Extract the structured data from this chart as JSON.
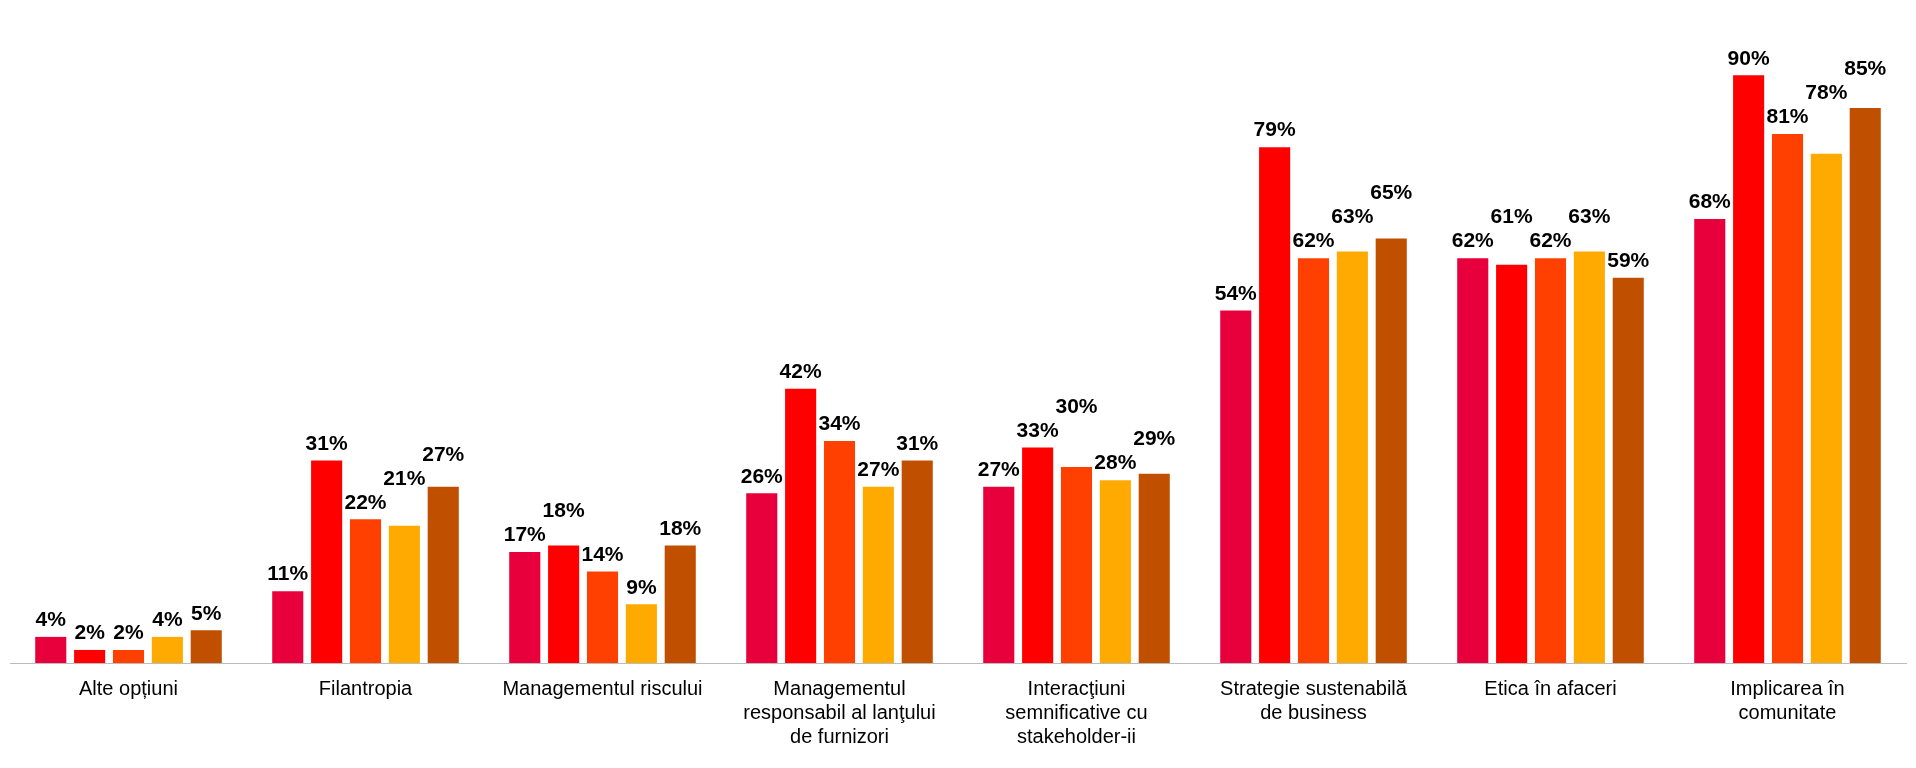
{
  "chart_data": {
    "type": "bar",
    "categories": [
      "Alte opțiuni",
      "Filantropia",
      "Managementul riscului",
      "Managementul responsabil al lanţului de furnizori",
      "Interacţiuni semnificative cu stakeholder-ii",
      "Strategie sustenabilă de business",
      "Etica în afaceri",
      "Implicarea în comunitate"
    ],
    "series": [
      {
        "color": "#e8003c",
        "values": [
          4,
          11,
          17,
          26,
          27,
          54,
          62,
          68
        ],
        "value_labels": [
          "4%",
          "11%",
          "17%",
          "26%",
          "27%",
          "54%",
          "62%",
          "68%"
        ]
      },
      {
        "color": "#ff0000",
        "values": [
          2,
          31,
          18,
          42,
          33,
          79,
          61,
          90
        ],
        "value_labels": [
          "2%",
          "31%",
          "18%",
          "42%",
          "33%",
          "79%",
          "61%",
          "90%"
        ]
      },
      {
        "color": "#ff4000",
        "values": [
          2,
          22,
          14,
          34,
          30,
          62,
          62,
          81
        ],
        "value_labels": [
          "2%",
          "22%",
          "14%",
          "34%",
          "30%",
          "62%",
          "62%",
          "81%"
        ]
      },
      {
        "color": "#ffaa00",
        "values": [
          4,
          21,
          9,
          27,
          28,
          63,
          63,
          78
        ],
        "value_labels": [
          "4%",
          "21%",
          "9%",
          "27%",
          "28%",
          "63%",
          "63%",
          "78%"
        ]
      },
      {
        "color": "#c05000",
        "values": [
          5,
          27,
          18,
          31,
          29,
          65,
          59,
          85
        ],
        "value_labels": [
          "5%",
          "27%",
          "18%",
          "31%",
          "29%",
          "65%",
          "59%",
          "85%"
        ]
      }
    ],
    "tick_labels": "x",
    "legend": false
  }
}
